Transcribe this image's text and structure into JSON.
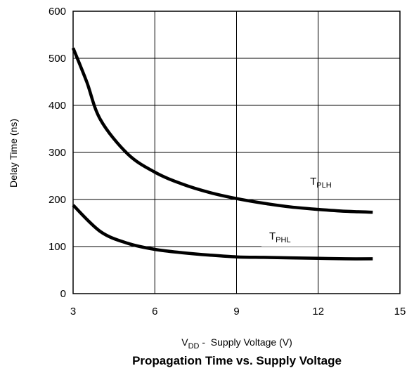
{
  "chart_data": {
    "type": "line",
    "title": "Propagation Time vs. Supply Voltage",
    "xlabel": {
      "main": "V",
      "sub": "DD",
      "rest": " -  Supply Voltage (V)"
    },
    "ylabel": "Delay Time (ns)",
    "xlim": [
      3,
      15
    ],
    "ylim": [
      0,
      600
    ],
    "xticks": [
      3,
      6,
      9,
      12,
      15
    ],
    "yticks": [
      0,
      100,
      200,
      300,
      400,
      500,
      600
    ],
    "grid": true,
    "series": [
      {
        "name": "TPLH",
        "label": {
          "main": "T",
          "sub": "PLH"
        },
        "x": [
          3,
          3.5,
          4,
          5,
          6,
          7,
          8,
          9,
          10,
          11,
          12,
          13,
          14
        ],
        "y": [
          522,
          450,
          370,
          297,
          258,
          233,
          215,
          202,
          192,
          184,
          179,
          175,
          173
        ]
      },
      {
        "name": "TPHL",
        "label": {
          "main": "T",
          "sub": "PHL"
        },
        "x": [
          3,
          4,
          5,
          6,
          7,
          8,
          9,
          10,
          11,
          12,
          13,
          14
        ],
        "y": [
          188,
          132,
          107,
          94,
          87,
          82,
          78,
          77,
          76,
          75,
          74,
          74
        ]
      }
    ]
  }
}
